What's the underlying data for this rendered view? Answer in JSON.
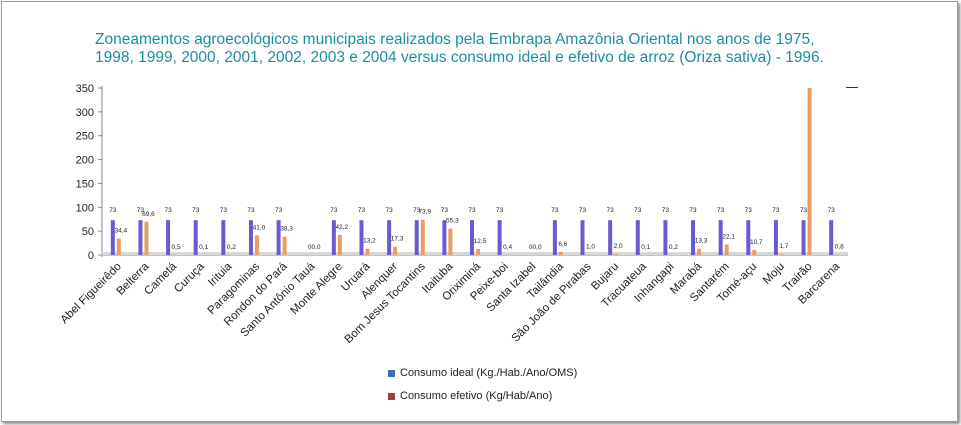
{
  "chart_data": {
    "type": "bar",
    "title": "Zoneamentos agroecológicos municipais realizados pela Embrapa Amazônia Oriental nos anos de 1975, 1998, 1999, 2000, 2001, 2002, 2003 e 2004 versus consumo ideal e efetivo de arroz (Oriza sativa) - 1996.",
    "xlabel": "",
    "ylabel": "",
    "ylim": [
      0,
      350
    ],
    "yticks": [
      0,
      50,
      100,
      150,
      200,
      250,
      300,
      350
    ],
    "grid": false,
    "legend": "bottom",
    "categories": [
      "Abel Figueirêdo",
      "Belterra",
      "Cametá",
      "Curuça",
      "Irituia",
      "Paragominas",
      "Rondon do Pará",
      "Santo Antônio Tauá",
      "Monte Alegre",
      "Uruará",
      "Alenquer",
      "Bom Jesus Tocantins",
      "Itaituba",
      "Oriximiná",
      "Peixe-boi",
      "Santa Izabel",
      "Tailândia",
      "São João de Pirabas",
      "Bujaru",
      "Tracuateua",
      "Inhangapi",
      "Marabá",
      "Santarém",
      "Tomé-açu",
      "Moju",
      "Trairão",
      "Barcarena"
    ],
    "series": [
      {
        "name": "Consumo ideal (Kg./Hab./Ano/OMS)",
        "color": "#6a5acd",
        "values": [
          73,
          73,
          73,
          73,
          73,
          73,
          73,
          0,
          73,
          73,
          73,
          73,
          73,
          73,
          73,
          0,
          73,
          73,
          73,
          73,
          73,
          73,
          73,
          73,
          73,
          73,
          73
        ],
        "labels": [
          "73",
          "73",
          "73",
          "73",
          "73",
          "73",
          "73",
          "",
          "73",
          "73",
          "73",
          "73",
          "73",
          "73",
          "73",
          "",
          "73",
          "73",
          "73",
          "73",
          "73",
          "73",
          "73",
          "73",
          "73",
          "73",
          "73"
        ]
      },
      {
        "name": "Consumo efetivo (Kg/Hab/Ano)",
        "color": "#e8a060",
        "values": [
          34.4,
          69.6,
          0.5,
          0.1,
          0.2,
          41.0,
          38.3,
          0.0,
          42.2,
          13.2,
          17.3,
          73.9,
          55.3,
          12.5,
          0.4,
          0.0,
          6.6,
          1.0,
          2.0,
          0.1,
          0.2,
          13.3,
          22.1,
          10.7,
          1.7,
          350,
          0.8
        ],
        "labels": [
          "34,4",
          "69,6",
          "0,5",
          "0,1",
          "0,2",
          "41,0",
          "38,3",
          "00,0",
          "42,2",
          "13,2",
          "17,3",
          "73,9",
          "55,3",
          "12,5",
          "0,4",
          "00,0",
          "6,6",
          "1,0",
          "2,0",
          "0,1",
          "0,2",
          "13,3",
          "22,1",
          "10,7",
          "1,7",
          "",
          "0,8"
        ]
      }
    ]
  },
  "legend_swatch_colors": [
    "#3a6fb0",
    "#a0403a"
  ]
}
